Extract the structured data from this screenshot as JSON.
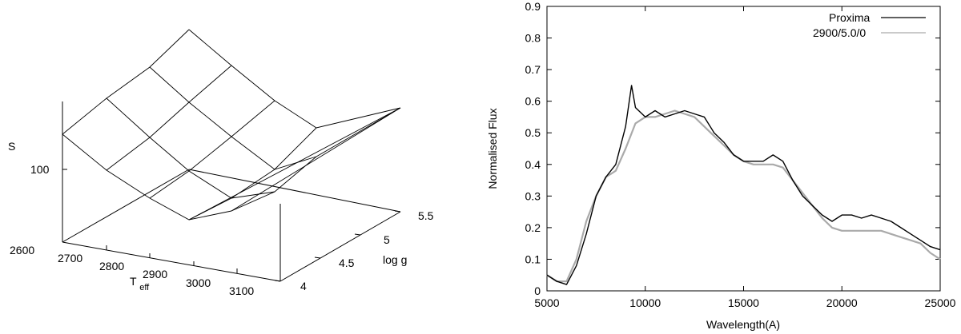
{
  "chart_data": [
    {
      "type": "surface3d",
      "zlabel": "S",
      "ztick_labels": [
        "100"
      ],
      "xlabel_main": "T",
      "xlabel_sub": "eff",
      "x_tick_labels": [
        "2600",
        "2700",
        "2800",
        "2900",
        "3000",
        "3100"
      ],
      "ylabel": "log g",
      "y_tick_labels": [
        "4",
        "4.5",
        "5",
        "5.5"
      ],
      "teff_grid": [
        2700,
        2800,
        2900,
        3000,
        3100
      ],
      "logg_grid": [
        4.0,
        4.5,
        5.0,
        5.5
      ],
      "grid": false,
      "legend": "none"
    },
    {
      "type": "line",
      "xlabel": "Wavelength(A)",
      "ylabel": "Normalised Flux",
      "xlim": [
        5000,
        25000
      ],
      "ylim": [
        0,
        0.9
      ],
      "x_ticks": [
        5000,
        10000,
        15000,
        20000,
        25000
      ],
      "y_ticks": [
        0,
        0.1,
        0.2,
        0.3,
        0.4,
        0.5,
        0.6,
        0.7,
        0.8,
        0.9
      ],
      "legend_position": "top-right",
      "grid": false,
      "series": [
        {
          "name": "Proxima",
          "color": "#000000",
          "x": [
            5000,
            5500,
            6000,
            6500,
            7000,
            7500,
            8000,
            8500,
            9000,
            9300,
            9500,
            10000,
            10500,
            11000,
            11500,
            12000,
            12500,
            13000,
            13500,
            14000,
            14500,
            15000,
            15500,
            16000,
            16500,
            17000,
            17500,
            18000,
            18500,
            19000,
            19500,
            20000,
            20500,
            21000,
            21500,
            22000,
            22500,
            23000,
            23500,
            24000,
            24500,
            25000
          ],
          "y": [
            0.05,
            0.03,
            0.02,
            0.08,
            0.18,
            0.3,
            0.36,
            0.4,
            0.52,
            0.65,
            0.58,
            0.55,
            0.57,
            0.55,
            0.56,
            0.57,
            0.56,
            0.55,
            0.5,
            0.47,
            0.43,
            0.41,
            0.41,
            0.41,
            0.43,
            0.41,
            0.35,
            0.3,
            0.27,
            0.24,
            0.22,
            0.24,
            0.24,
            0.23,
            0.24,
            0.23,
            0.22,
            0.2,
            0.18,
            0.16,
            0.14,
            0.13
          ]
        },
        {
          "name": "2900/5.0/0",
          "color": "#aaaaaa",
          "x": [
            5000,
            5500,
            6000,
            6500,
            7000,
            7500,
            8000,
            8500,
            9000,
            9500,
            10000,
            10500,
            11000,
            11500,
            12000,
            12500,
            13000,
            13500,
            14000,
            14500,
            15000,
            15500,
            16000,
            16500,
            17000,
            17500,
            18000,
            18500,
            19000,
            19500,
            20000,
            20500,
            21000,
            21500,
            22000,
            22500,
            23000,
            23500,
            24000,
            24500,
            25000
          ],
          "y": [
            0.05,
            0.03,
            0.03,
            0.1,
            0.22,
            0.3,
            0.36,
            0.38,
            0.45,
            0.53,
            0.55,
            0.55,
            0.56,
            0.57,
            0.56,
            0.55,
            0.52,
            0.49,
            0.46,
            0.43,
            0.41,
            0.4,
            0.4,
            0.4,
            0.39,
            0.35,
            0.31,
            0.27,
            0.23,
            0.2,
            0.19,
            0.19,
            0.19,
            0.19,
            0.19,
            0.18,
            0.17,
            0.16,
            0.15,
            0.12,
            0.1
          ]
        }
      ]
    }
  ]
}
